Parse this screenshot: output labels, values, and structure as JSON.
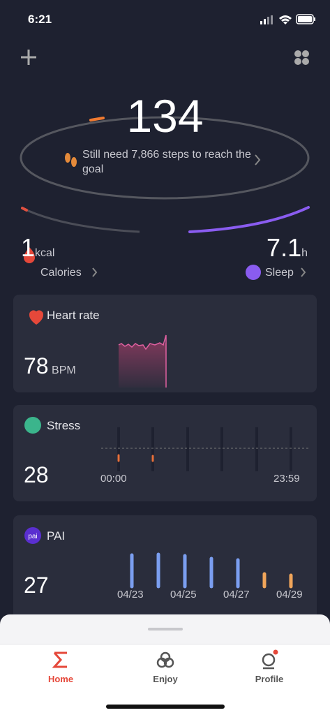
{
  "status_bar": {
    "time": "6:21"
  },
  "steps": {
    "count": "134",
    "message": "Still need 7,866 steps to reach the goal"
  },
  "calories": {
    "value": "1",
    "unit": "kcal",
    "label": "Calories"
  },
  "sleep": {
    "value": "7.1",
    "unit": "h",
    "label": "Sleep"
  },
  "heart_rate": {
    "title": "Heart rate",
    "value": "78",
    "unit": "BPM"
  },
  "stress": {
    "title": "Stress",
    "value": "28",
    "start_label": "00:00",
    "end_label": "23:59"
  },
  "pai": {
    "title": "PAI",
    "icon": "pai",
    "value": "27",
    "dates": [
      "04/23",
      "04/25",
      "04/27",
      "04/29"
    ],
    "bars": [
      45,
      46,
      44,
      40,
      38,
      18,
      16
    ],
    "bar_colors": [
      "#7b9ef0",
      "#7b9ef0",
      "#7b9ef0",
      "#7b9ef0",
      "#7b9ef0",
      "#f0a55a",
      "#f0a55a"
    ]
  },
  "tabs": [
    {
      "label": "Home"
    },
    {
      "label": "Enjoy"
    },
    {
      "label": "Profile"
    }
  ]
}
